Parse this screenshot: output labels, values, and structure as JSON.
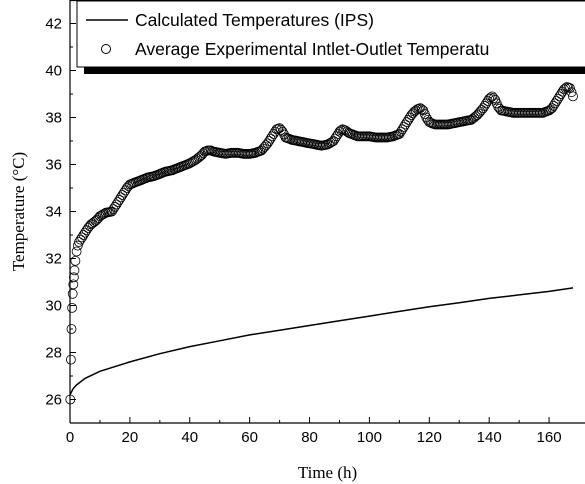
{
  "chart_data": {
    "type": "line",
    "title": "",
    "xlabel": "Time (h)",
    "ylabel": "Temperature (°C)",
    "xlim": [
      0,
      172
    ],
    "ylim": [
      25,
      43
    ],
    "xticks": [
      0,
      20,
      40,
      60,
      80,
      100,
      120,
      140,
      160
    ],
    "yticks": [
      26,
      28,
      30,
      32,
      34,
      36,
      38,
      40,
      42
    ],
    "grid": false,
    "legend_position": "top-right",
    "series": [
      {
        "name": "Calculated Temperatures (IPS)",
        "style": "solid-line",
        "color": "#000000",
        "x": [
          0,
          1,
          2,
          5,
          10,
          20,
          30,
          40,
          50,
          60,
          70,
          80,
          90,
          100,
          110,
          120,
          130,
          140,
          150,
          160,
          168
        ],
        "y": [
          26.2,
          26.45,
          26.6,
          26.9,
          27.2,
          27.6,
          27.95,
          28.25,
          28.5,
          28.75,
          28.95,
          29.15,
          29.35,
          29.55,
          29.75,
          29.95,
          30.12,
          30.3,
          30.45,
          30.6,
          30.75
        ]
      },
      {
        "name": "Average Experimental Intlet-Outlet Temperatu",
        "style": "open-circle",
        "color": "#000000",
        "x": [
          0.1,
          0.3,
          0.5,
          0.7,
          0.9,
          1.1,
          1.3,
          1.5,
          1.8,
          2.2,
          2.6,
          3,
          4,
          5,
          6,
          7,
          8,
          9,
          10,
          12,
          14,
          15,
          16,
          17,
          18,
          19,
          20,
          22,
          24,
          26,
          28,
          30,
          32,
          34,
          36,
          38,
          40,
          42,
          44,
          45,
          46,
          47,
          48,
          50,
          52,
          54,
          56,
          58,
          60,
          62,
          64,
          65,
          66,
          67,
          68,
          69,
          70,
          71,
          72,
          74,
          76,
          78,
          80,
          82,
          84,
          86,
          88,
          89,
          90,
          91,
          92,
          93,
          94,
          95,
          96,
          98,
          100,
          102,
          104,
          106,
          108,
          110,
          111,
          112,
          113,
          114,
          115,
          116,
          117,
          118,
          119,
          120,
          121,
          122,
          124,
          126,
          128,
          130,
          132,
          134,
          135,
          136,
          137,
          138,
          139,
          140,
          141,
          142,
          143,
          144,
          146,
          148,
          150,
          152,
          154,
          156,
          158,
          159,
          160,
          161,
          162,
          163,
          164,
          165,
          166,
          167,
          168
        ],
        "y": [
          26.0,
          27.7,
          29.0,
          29.9,
          30.5,
          30.9,
          31.2,
          31.5,
          31.9,
          32.3,
          32.55,
          32.7,
          32.9,
          33.1,
          33.3,
          33.45,
          33.55,
          33.65,
          33.8,
          33.95,
          34.0,
          34.2,
          34.4,
          34.6,
          34.8,
          35.0,
          35.15,
          35.25,
          35.35,
          35.45,
          35.5,
          35.6,
          35.7,
          35.75,
          35.85,
          35.95,
          36.05,
          36.2,
          36.4,
          36.55,
          36.6,
          36.6,
          36.55,
          36.5,
          36.45,
          36.5,
          36.5,
          36.45,
          36.45,
          36.5,
          36.6,
          36.75,
          36.9,
          37.1,
          37.3,
          37.5,
          37.55,
          37.4,
          37.15,
          37.05,
          37.0,
          36.95,
          36.9,
          36.85,
          36.8,
          36.85,
          37.0,
          37.2,
          37.4,
          37.5,
          37.45,
          37.35,
          37.3,
          37.25,
          37.2,
          37.2,
          37.2,
          37.15,
          37.15,
          37.15,
          37.2,
          37.3,
          37.5,
          37.7,
          37.9,
          38.1,
          38.25,
          38.35,
          38.4,
          38.3,
          38.0,
          37.8,
          37.75,
          37.7,
          37.7,
          37.7,
          37.75,
          37.8,
          37.85,
          37.9,
          38.0,
          38.1,
          38.25,
          38.4,
          38.6,
          38.8,
          38.9,
          38.75,
          38.45,
          38.3,
          38.25,
          38.2,
          38.2,
          38.2,
          38.2,
          38.2,
          38.2,
          38.25,
          38.3,
          38.4,
          38.6,
          38.8,
          39.0,
          39.2,
          39.3,
          39.25,
          38.9
        ]
      }
    ]
  }
}
